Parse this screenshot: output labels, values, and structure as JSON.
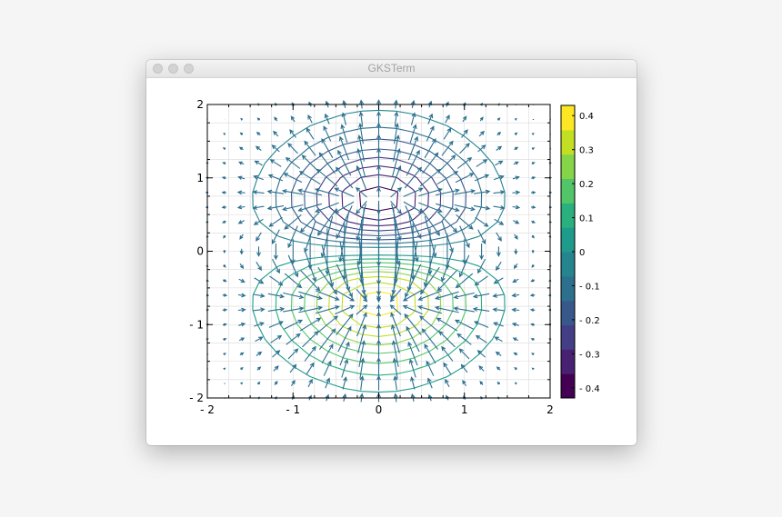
{
  "window": {
    "title": "GKSTerm"
  },
  "colors": {
    "colormap": [
      "#440154",
      "#482173",
      "#433e85",
      "#38588c",
      "#2d708e",
      "#25858e",
      "#1e9b8a",
      "#2ab07f",
      "#52c569",
      "#86d549",
      "#c2df23",
      "#fde725"
    ],
    "arrow": "#2a6f8f",
    "grid": "#d9d9d9"
  },
  "chart_data": {
    "type": "contour",
    "title": "",
    "xlabel": "",
    "ylabel": "",
    "xlim": [
      -2,
      2
    ],
    "ylim": [
      -2,
      2
    ],
    "grid": true,
    "function": "z = -y * exp(-(x^2 + y^2)) (sampled)",
    "contour_levels": [
      -0.4,
      -0.35,
      -0.3,
      -0.25,
      -0.2,
      -0.15,
      -0.1,
      -0.05,
      0.05,
      0.1,
      0.15,
      0.2,
      0.25,
      0.3,
      0.35,
      0.4
    ],
    "quiver": {
      "x_start": -2,
      "x_end": 2,
      "x_step": 0.2,
      "y_start": -2,
      "y_end": 2,
      "y_step": 0.2
    },
    "x_ticks": [
      "- 2",
      "- 1",
      "0",
      "1",
      "2"
    ],
    "x_tick_values": [
      -2,
      -1,
      0,
      1,
      2
    ],
    "y_ticks": [
      "- 2",
      "- 1",
      "0",
      "1",
      "2"
    ],
    "y_tick_values": [
      -2,
      -1,
      0,
      1,
      2
    ],
    "colorbar": {
      "range": [
        -0.43,
        0.43
      ],
      "ticks": [
        "0.4",
        "0.3",
        "0.2",
        "0.1",
        "0",
        "- 0.1",
        "- 0.2",
        "- 0.3",
        "- 0.4"
      ],
      "tick_values": [
        0.4,
        0.3,
        0.2,
        0.1,
        0,
        -0.1,
        -0.2,
        -0.3,
        -0.4
      ]
    }
  }
}
